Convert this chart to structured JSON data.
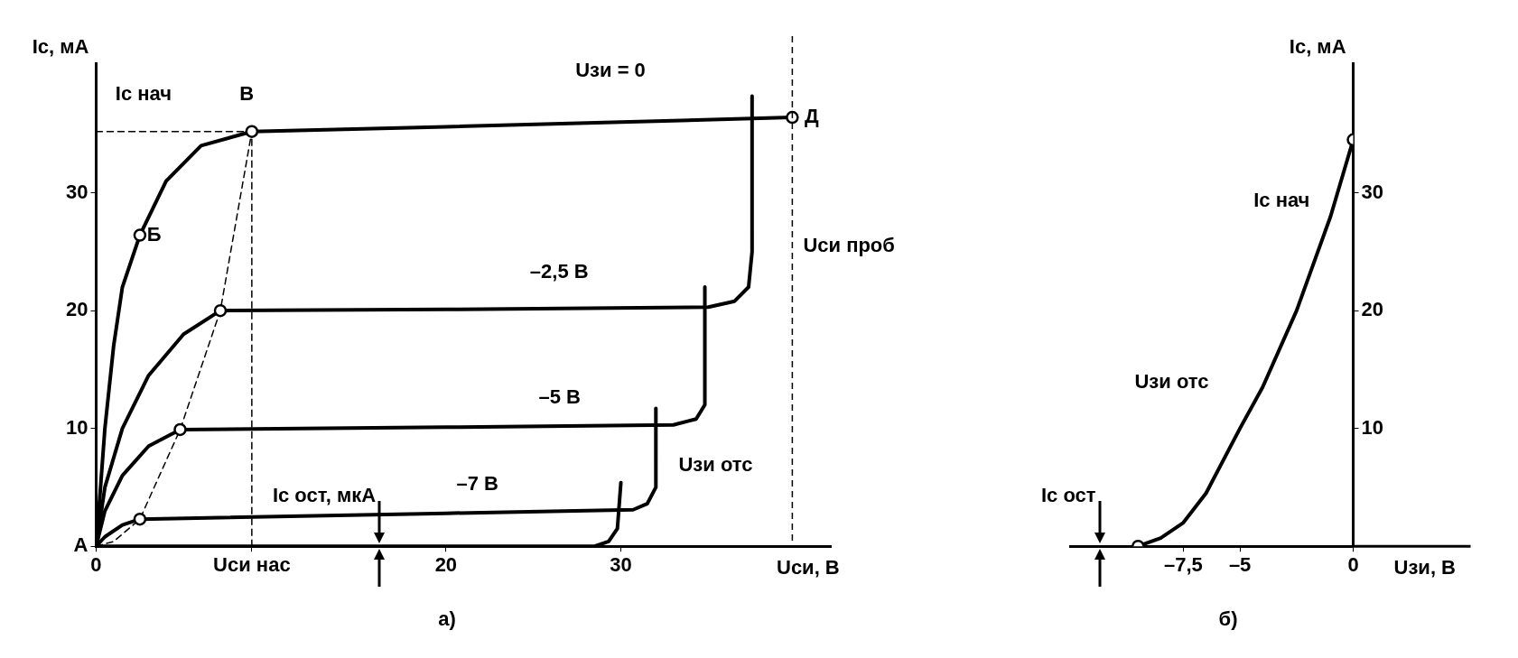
{
  "chart_data": [
    {
      "type": "line",
      "title": "а)",
      "xlabel": "Uси, В",
      "ylabel": "Ic, мА",
      "xlim": [
        0,
        42
      ],
      "ylim": [
        0,
        41
      ],
      "xticks": [
        0,
        {
          "value": 8.9,
          "label": "Uси нас"
        },
        20,
        30
      ],
      "yticks": [
        {
          "value": 0,
          "label": "А"
        },
        10,
        20,
        30
      ],
      "grid": false,
      "legend": false,
      "marker": "none",
      "line_style": "solid",
      "series": [
        {
          "color": "#000000",
          "x": [
            0,
            0.5,
            1,
            1.5,
            2.5,
            4,
            6,
            8.9,
            20,
            30,
            39.8
          ],
          "values": [
            0,
            10,
            17,
            22,
            26.4,
            31,
            34,
            35.2,
            35.6,
            36,
            36.4
          ]
        },
        {
          "color": "#000000",
          "x": [
            0,
            0.5,
            1.5,
            3,
            5,
            7.1,
            20,
            35,
            36.5,
            37.3,
            37.5,
            37.5
          ],
          "values": [
            0,
            5,
            10,
            14.5,
            18,
            20,
            20.1,
            20.3,
            20.8,
            22,
            25,
            38.2
          ]
        },
        {
          "color": "#000000",
          "x": [
            0,
            0.5,
            1.5,
            3,
            4.8,
            20,
            33,
            34.3,
            34.8,
            34.8
          ],
          "values": [
            0,
            3,
            6,
            8.5,
            9.9,
            10.1,
            10.3,
            10.8,
            12,
            22
          ]
        },
        {
          "color": "#000000",
          "x": [
            0,
            0.5,
            1.5,
            2.5,
            20,
            30.7,
            31.5,
            32,
            32
          ],
          "values": [
            0,
            0.8,
            1.8,
            2.3,
            2.8,
            3.1,
            3.6,
            5,
            11.7
          ]
        },
        {
          "color": "#000000",
          "x": [
            0,
            28.5,
            29.3,
            29.8,
            30
          ],
          "values": [
            0,
            0,
            0.4,
            1.5,
            5.4
          ]
        },
        {
          "color": "#000000",
          "line_style": "dashed",
          "x": [
            0,
            1,
            2.5,
            4.8,
            7.1,
            8.9
          ],
          "values": [
            0,
            0.4,
            2.3,
            9.9,
            20,
            35.2
          ]
        },
        {
          "color": "#000000",
          "line_style": "dashed",
          "x": [
            0,
            8.9
          ],
          "values": [
            35.2,
            35.2
          ]
        },
        {
          "color": "#000000",
          "line_style": "dashed",
          "x": [
            8.9,
            8.9
          ],
          "values": [
            0,
            35.2
          ]
        },
        {
          "type": "scatter",
          "marker": "circle",
          "color": "#000000",
          "x": [
            2.5,
            8.9,
            39.8,
            7.1,
            4.8,
            2.5
          ],
          "values": [
            26.4,
            35.2,
            36.4,
            20,
            9.9,
            2.3
          ]
        }
      ],
      "ref_lines": [
        {
          "axis": "x",
          "value": 39.8,
          "label": "Uси проб",
          "color": "#000000",
          "line_style": "dashed"
        }
      ],
      "annotations": [
        "Ic нач",
        "В",
        "Uзи = 0",
        "Д",
        {
          "text": "Б",
          "x": 2.9,
          "y": 26.4
        },
        "–2,5 В",
        "–5 В",
        "–7 В",
        "Uзи отс",
        {
          "text": "Ic ост, мкА",
          "x": 16.2,
          "y": 0
        }
      ]
    },
    {
      "type": "line",
      "title": "б)",
      "xlabel": "Uзи, В",
      "ylabel": "Ic, мА",
      "xlim": [
        -12.5,
        0
      ],
      "ylim": [
        0,
        41
      ],
      "xticks": [
        {
          "value": -7.5,
          "label": "–7,5"
        },
        {
          "value": -5,
          "label": "–5"
        },
        0
      ],
      "yticks": [
        10,
        20,
        30
      ],
      "grid": false,
      "legend": false,
      "marker": "none",
      "line_style": "solid",
      "series": [
        {
          "color": "#000000",
          "x": [
            -9.5,
            -8.5,
            -7.5,
            -6.5,
            -5,
            -4,
            -2.5,
            -1,
            0
          ],
          "values": [
            0,
            0.7,
            2,
            4.5,
            10,
            13.5,
            20,
            28,
            34.5
          ]
        },
        {
          "type": "scatter",
          "marker": "circle",
          "color": "#000000",
          "x": [
            -9.5,
            0
          ],
          "values": [
            0,
            34.5
          ]
        }
      ],
      "annotations": [
        "Ic нач",
        "Uзи отс",
        "Ic ост"
      ]
    }
  ]
}
